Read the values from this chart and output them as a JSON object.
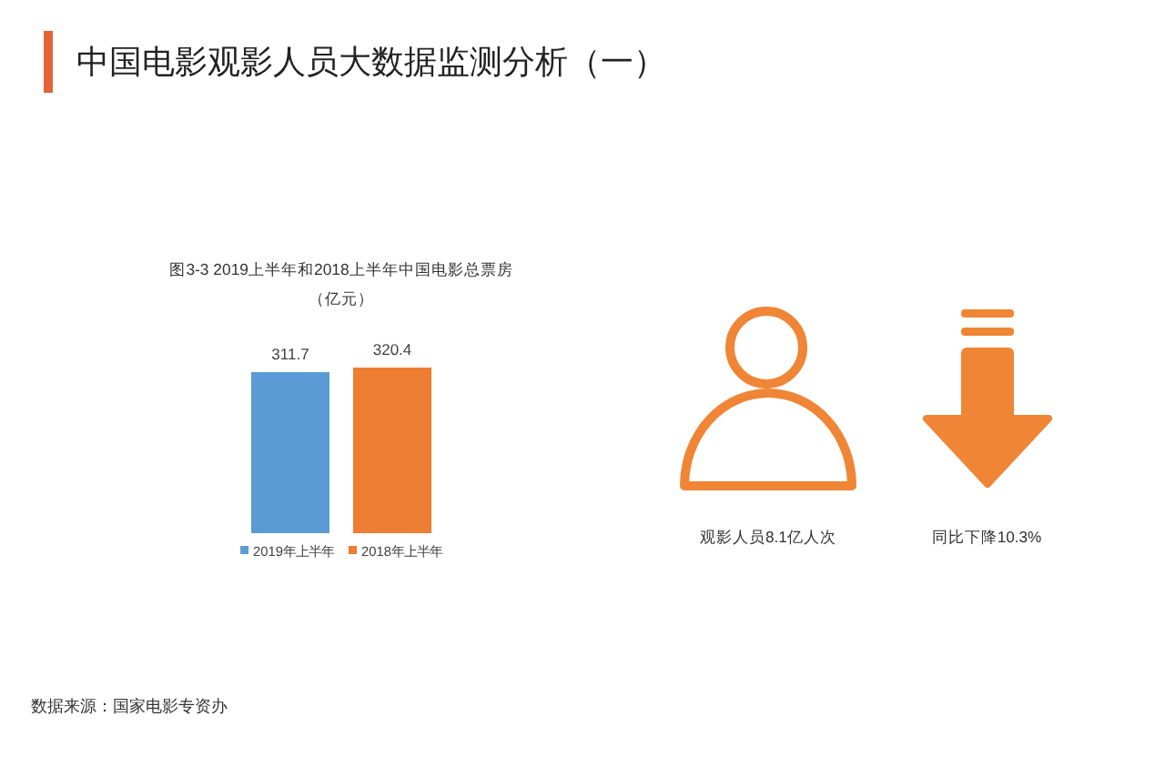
{
  "chart_data": {
    "type": "bar",
    "title": "中国电影观影人员大数据监测分析（一）",
    "subtitle": "图3-3 2019上半年和2018上半年中国电影总票房",
    "ylabel": "（亿元）",
    "categories": [
      null
    ],
    "series": [
      {
        "name": "2019年上半年",
        "color": "#5b9bd5",
        "values": [
          311.7
        ]
      },
      {
        "name": "2018年上半年",
        "color": "#ed7d31",
        "values": [
          320.4
        ]
      }
    ],
    "data_labels": true,
    "legend": "bottom",
    "annotations": [
      "观影人员8.1亿人次",
      "同比下降10.3%",
      "数据来源：国家电影专资办"
    ]
  }
}
